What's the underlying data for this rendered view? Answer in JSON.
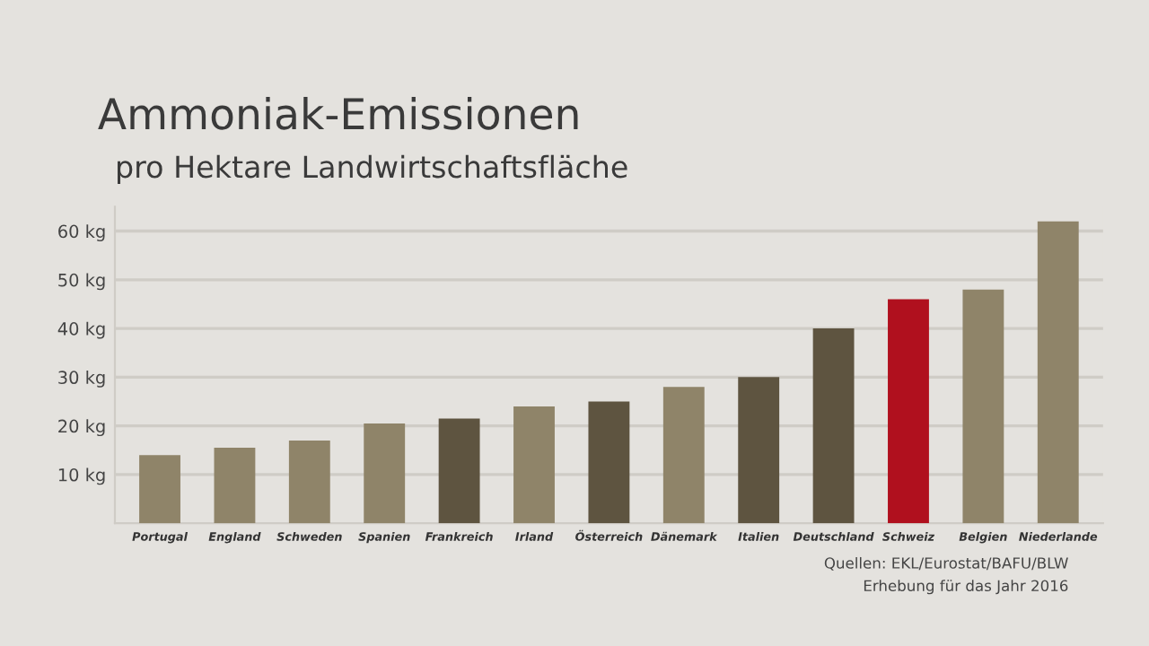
{
  "chart_data": {
    "type": "bar",
    "title": "Ammoniak-Emissionen",
    "subtitle": "pro Hektare Landwirtschaftsfläche",
    "categories": [
      "Portugal",
      "England",
      "Schweden",
      "Spanien",
      "Frankreich",
      "Irland",
      "Österreich",
      "Dänemark",
      "Italien",
      "Deutschland",
      "Schweiz",
      "Belgien",
      "Niederlande"
    ],
    "values": [
      14,
      15.5,
      17,
      20.5,
      21.5,
      24,
      25,
      28,
      30,
      40,
      46,
      48,
      62
    ],
    "colors": [
      "#8f8469",
      "#8f8469",
      "#8f8469",
      "#8f8469",
      "#5e5440",
      "#8f8469",
      "#5e5440",
      "#8f8469",
      "#5e5440",
      "#5e5440",
      "#b0101e",
      "#8f8469",
      "#8f8469"
    ],
    "ylim": [
      0,
      65
    ],
    "yticks": [
      {
        "value": 10,
        "label": "10 kg"
      },
      {
        "value": 20,
        "label": "20 kg"
      },
      {
        "value": 30,
        "label": "30 kg"
      },
      {
        "value": 40,
        "label": "40 kg"
      },
      {
        "value": 50,
        "label": "50 kg"
      },
      {
        "value": 60,
        "label": "60 kg"
      }
    ],
    "grid": "y",
    "annotations": [
      "Quellen: EKL/Eurostat/BAFU/BLW",
      "Erhebung für das Jahr 2016"
    ]
  }
}
